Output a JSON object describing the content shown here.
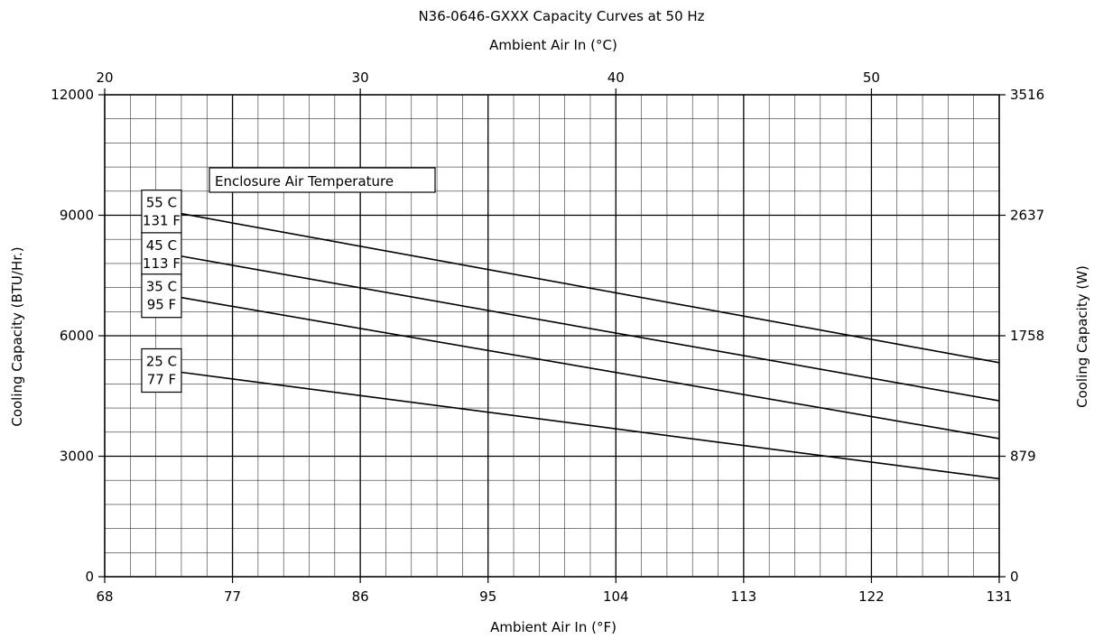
{
  "chart_data": {
    "type": "line",
    "title": "N36-0646-GXXX Capacity Curves at 50 Hz",
    "xlabel": "Ambient Air In (°F)",
    "x2label": "Ambient Air In (°C)",
    "ylabel": "Cooling Capacity (BTU/Hr.)",
    "y2label": "Cooling Capacity (W)",
    "xlim": [
      68,
      131
    ],
    "ylim": [
      0,
      12000
    ],
    "x2lim": [
      20,
      55
    ],
    "xticks": [
      68,
      77,
      86,
      95,
      104,
      113,
      122,
      131
    ],
    "yticks": [
      0,
      3000,
      6000,
      9000,
      12000
    ],
    "x2ticks": [
      20,
      30,
      40,
      50
    ],
    "y2ticks": [
      {
        "value": 0,
        "label": "0"
      },
      {
        "value": 3000,
        "label": "879"
      },
      {
        "value": 6000,
        "label": "1758"
      },
      {
        "value": 9000,
        "label": "2637"
      },
      {
        "value": 12000,
        "label": "3516"
      }
    ],
    "grid": true,
    "legend_title": "Enclosure Air Temperature",
    "series": [
      {
        "name": "55 C\n131 F",
        "x": [
          73.4,
          131
        ],
        "y": [
          9040,
          5330
        ]
      },
      {
        "name": "45 C\n113 F",
        "x": [
          73.4,
          131
        ],
        "y": [
          7980,
          4380
        ]
      },
      {
        "name": "35 C\n95 F",
        "x": [
          73.4,
          131
        ],
        "y": [
          6950,
          3440
        ]
      },
      {
        "name": "25 C\n77 F",
        "x": [
          73.4,
          131
        ],
        "y": [
          5090,
          2440
        ]
      }
    ]
  }
}
